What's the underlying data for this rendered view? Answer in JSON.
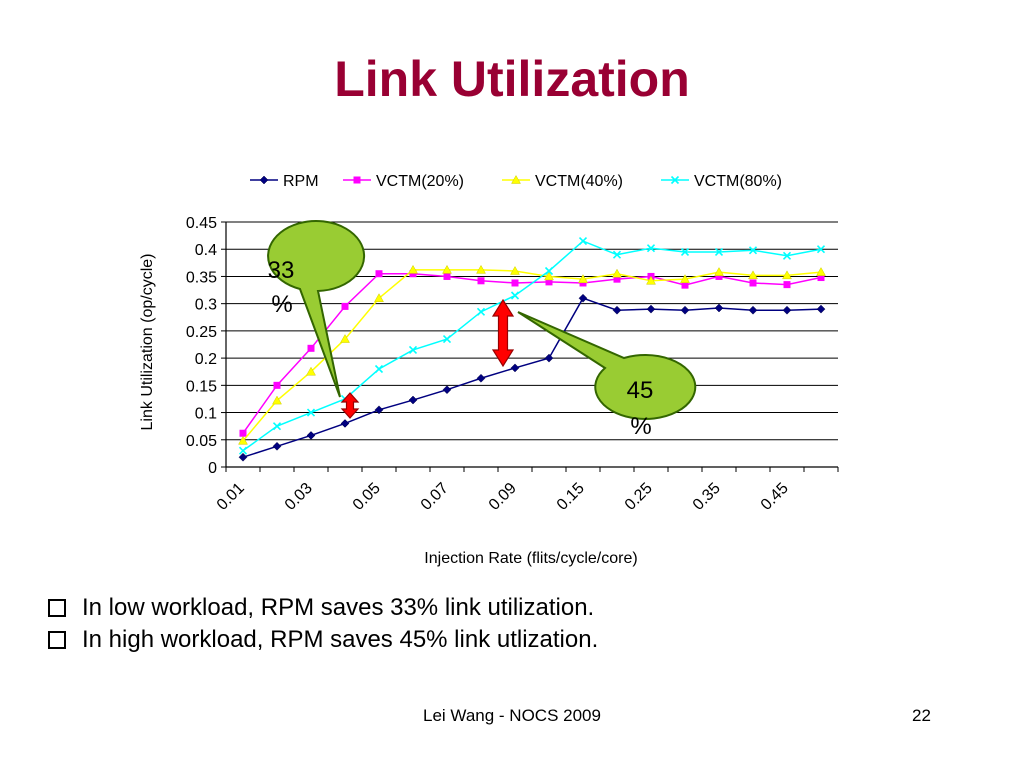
{
  "slide": {
    "title": "Link Utilization",
    "bullets": [
      "In low workload, RPM saves 33% link utilization.",
      "In high workload, RPM saves 45% link utlization."
    ],
    "footer": "Lei Wang - NOCS 2009",
    "page_number": "22"
  },
  "callouts": {
    "low": {
      "line1": "33",
      "line2": "%"
    },
    "high": {
      "line1": "45",
      "line2": "%"
    }
  },
  "colors": {
    "title": "#990033",
    "callout_fill": "#99cc33",
    "arrow": "#ff0000",
    "RPM": "#000080",
    "VCTM20": "#ff00ff",
    "VCTM40": "#ffff00",
    "VCTM80": "#00ffff"
  },
  "chart_data": {
    "type": "line",
    "xlabel": "Injection Rate (flits/cycle/core)",
    "ylabel": "Link Utilization (op/cycle)",
    "ylim": [
      0,
      0.45
    ],
    "yticks": [
      0,
      0.05,
      0.1,
      0.15,
      0.2,
      0.25,
      0.3,
      0.35,
      0.4,
      0.45
    ],
    "ytick_labels": [
      "0",
      "0.05",
      "0.1",
      "0.15",
      "0.2",
      "0.25",
      "0.3",
      "0.35",
      "0.4",
      "0.45"
    ],
    "x": [
      0.01,
      0.02,
      0.03,
      0.04,
      0.05,
      0.06,
      0.07,
      0.08,
      0.09,
      0.1,
      0.15,
      0.2,
      0.25,
      0.3,
      0.35,
      0.4,
      0.45,
      0.5
    ],
    "xtick_labels": [
      "0.01",
      "",
      "0.03",
      "",
      "0.05",
      "",
      "0.07",
      "",
      "0.09",
      "",
      "0.15",
      "",
      "0.25",
      "",
      "0.35",
      "",
      "0.45",
      ""
    ],
    "legend_position": "top",
    "grid": "horizontal",
    "series": [
      {
        "name": "RPM",
        "key": "RPM",
        "marker": "diamond",
        "values": [
          0.018,
          0.038,
          0.058,
          0.08,
          0.105,
          0.123,
          0.142,
          0.163,
          0.182,
          0.2,
          0.31,
          0.288,
          0.29,
          0.288,
          0.292,
          0.288,
          0.288,
          0.29
        ]
      },
      {
        "name": "VCTM(20%)",
        "key": "VCTM20",
        "marker": "square",
        "values": [
          0.062,
          0.15,
          0.218,
          0.295,
          0.355,
          0.355,
          0.35,
          0.342,
          0.338,
          0.34,
          0.338,
          0.345,
          0.35,
          0.334,
          0.35,
          0.338,
          0.335,
          0.348
        ]
      },
      {
        "name": "VCTM(40%)",
        "key": "VCTM40",
        "marker": "triangle",
        "values": [
          0.048,
          0.122,
          0.175,
          0.235,
          0.31,
          0.362,
          0.362,
          0.362,
          0.36,
          0.35,
          0.345,
          0.355,
          0.342,
          0.345,
          0.358,
          0.352,
          0.352,
          0.358
        ]
      },
      {
        "name": "VCTM(80%)",
        "key": "VCTM80",
        "marker": "x",
        "values": [
          0.03,
          0.075,
          0.1,
          0.125,
          0.18,
          0.215,
          0.235,
          0.285,
          0.315,
          0.36,
          0.415,
          0.39,
          0.402,
          0.395,
          0.395,
          0.398,
          0.388,
          0.4
        ]
      }
    ]
  }
}
